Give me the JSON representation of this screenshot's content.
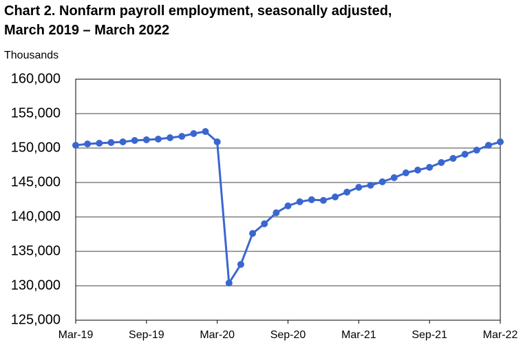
{
  "chart_data": {
    "type": "line",
    "title": [
      "Chart 2. Nonfarm payroll employment, seasonally adjusted,",
      "March 2019 – March 2022"
    ],
    "y_label": "Thousands",
    "categories": [
      "Mar-19",
      null,
      null,
      null,
      null,
      null,
      "Sep-19",
      null,
      null,
      null,
      null,
      null,
      "Mar-20",
      null,
      null,
      null,
      null,
      null,
      "Sep-20",
      null,
      null,
      null,
      null,
      null,
      "Mar-21",
      null,
      null,
      null,
      null,
      null,
      "Sep-21",
      null,
      null,
      null,
      null,
      null,
      "Mar-22"
    ],
    "series": [
      {
        "color": "#3a66d0",
        "values": [
          150400,
          150600,
          150700,
          150800,
          150900,
          151100,
          151200,
          151300,
          151500,
          151700,
          152100,
          152400,
          150900,
          130400,
          133100,
          137600,
          139000,
          140600,
          141600,
          142200,
          142500,
          142400,
          142900,
          143600,
          144300,
          144600,
          145100,
          145700,
          146400,
          146800,
          147200,
          147900,
          148500,
          149100,
          149700,
          150400,
          150900
        ]
      }
    ],
    "ylim": [
      125000,
      160000
    ],
    "yticks": [
      {
        "value": 125000,
        "label": "125,000"
      },
      {
        "value": 130000,
        "label": "130,000"
      },
      {
        "value": 135000,
        "label": "135,000"
      },
      {
        "value": 140000,
        "label": "140,000"
      },
      {
        "value": 145000,
        "label": "145,000"
      },
      {
        "value": 150000,
        "label": "150,000"
      },
      {
        "value": 155000,
        "label": "155,000"
      },
      {
        "value": 160000,
        "label": "160,000"
      }
    ],
    "grid": true
  }
}
